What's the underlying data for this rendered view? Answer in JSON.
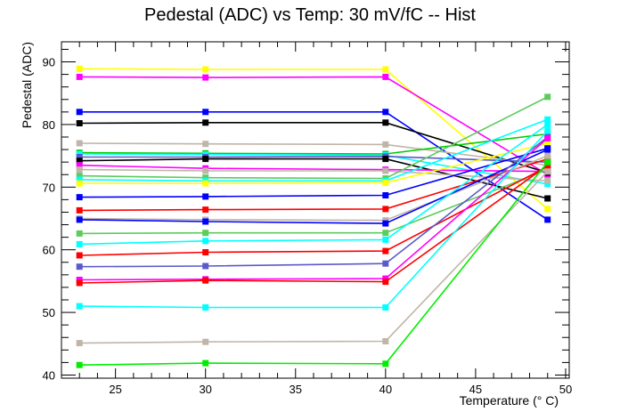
{
  "chart_data": {
    "type": "line",
    "title": "Pedestal (ADC) vs Temp: 30 mV/fC -- Hist",
    "xlabel": "Temperature (° C)",
    "ylabel": "Pedestal (ADC)",
    "xlim": [
      22,
      50.2
    ],
    "ylim": [
      39.5,
      93.2
    ],
    "xticks": [
      25,
      30,
      35,
      40,
      45,
      50
    ],
    "yticks": [
      40,
      50,
      60,
      70,
      80,
      90
    ],
    "grid": false,
    "x": [
      23,
      30,
      40,
      49
    ],
    "series": [
      {
        "color": "#ffff00",
        "values": [
          88.9,
          88.8,
          88.8,
          66.5
        ]
      },
      {
        "color": "#ff00ff",
        "values": [
          87.6,
          87.5,
          87.6,
          72.0
        ]
      },
      {
        "color": "#0000ff",
        "values": [
          82.0,
          82.0,
          82.0,
          64.8
        ]
      },
      {
        "color": "#000000",
        "values": [
          80.2,
          80.3,
          80.3,
          72.3
        ]
      },
      {
        "color": "#c0b5a8",
        "values": [
          77.0,
          76.9,
          76.8,
          73.5
        ]
      },
      {
        "color": "#00cc00",
        "values": [
          75.5,
          75.4,
          75.3,
          78.5
        ]
      },
      {
        "color": "#00ffff",
        "values": [
          75.3,
          75.2,
          75.1,
          70.5
        ]
      },
      {
        "color": "#5a5acc",
        "values": [
          74.8,
          74.8,
          74.9,
          74.0
        ]
      },
      {
        "color": "#000000",
        "values": [
          74.2,
          74.5,
          74.5,
          68.2
        ]
      },
      {
        "color": "#ff00ff",
        "values": [
          73.5,
          73.0,
          72.8,
          72.5
        ]
      },
      {
        "color": "#c0b5a8",
        "values": [
          72.8,
          72.6,
          72.6,
          71.0
        ]
      },
      {
        "color": "#5ccc5c",
        "values": [
          71.8,
          71.5,
          71.4,
          84.4
        ]
      },
      {
        "color": "#00ffff",
        "values": [
          71.2,
          71.0,
          71.0,
          80.8
        ]
      },
      {
        "color": "#ffff00",
        "values": [
          70.6,
          70.6,
          70.7,
          77.0
        ]
      },
      {
        "color": "#0000ff",
        "values": [
          68.4,
          68.5,
          68.7,
          76.2
        ]
      },
      {
        "color": "#ff0000",
        "values": [
          66.3,
          66.4,
          66.5,
          74.5
        ]
      },
      {
        "color": "#c0b5a8",
        "values": [
          65.0,
          64.8,
          64.7,
          75.0
        ]
      },
      {
        "color": "#0000ff",
        "values": [
          64.8,
          64.5,
          64.2,
          76.0
        ]
      },
      {
        "color": "#5ccc5c",
        "values": [
          62.6,
          62.7,
          62.7,
          72.8
        ]
      },
      {
        "color": "#00ffff",
        "values": [
          60.9,
          61.4,
          61.6,
          80.0
        ]
      },
      {
        "color": "#ff0000",
        "values": [
          59.1,
          59.6,
          59.8,
          73.3
        ]
      },
      {
        "color": "#5a5acc",
        "values": [
          57.3,
          57.4,
          57.8,
          78.0
        ]
      },
      {
        "color": "#ff00ff",
        "values": [
          55.2,
          55.3,
          55.4,
          77.8
        ]
      },
      {
        "color": "#ff0000",
        "values": [
          54.7,
          55.1,
          54.9,
          73.5
        ]
      },
      {
        "color": "#00ffff",
        "values": [
          51.0,
          50.8,
          50.8,
          79.0
        ]
      },
      {
        "color": "#c0b5a8",
        "values": [
          45.1,
          45.3,
          45.4,
          72.5
        ]
      },
      {
        "color": "#00ee00",
        "values": [
          41.6,
          41.9,
          41.8,
          74.0
        ]
      }
    ]
  }
}
